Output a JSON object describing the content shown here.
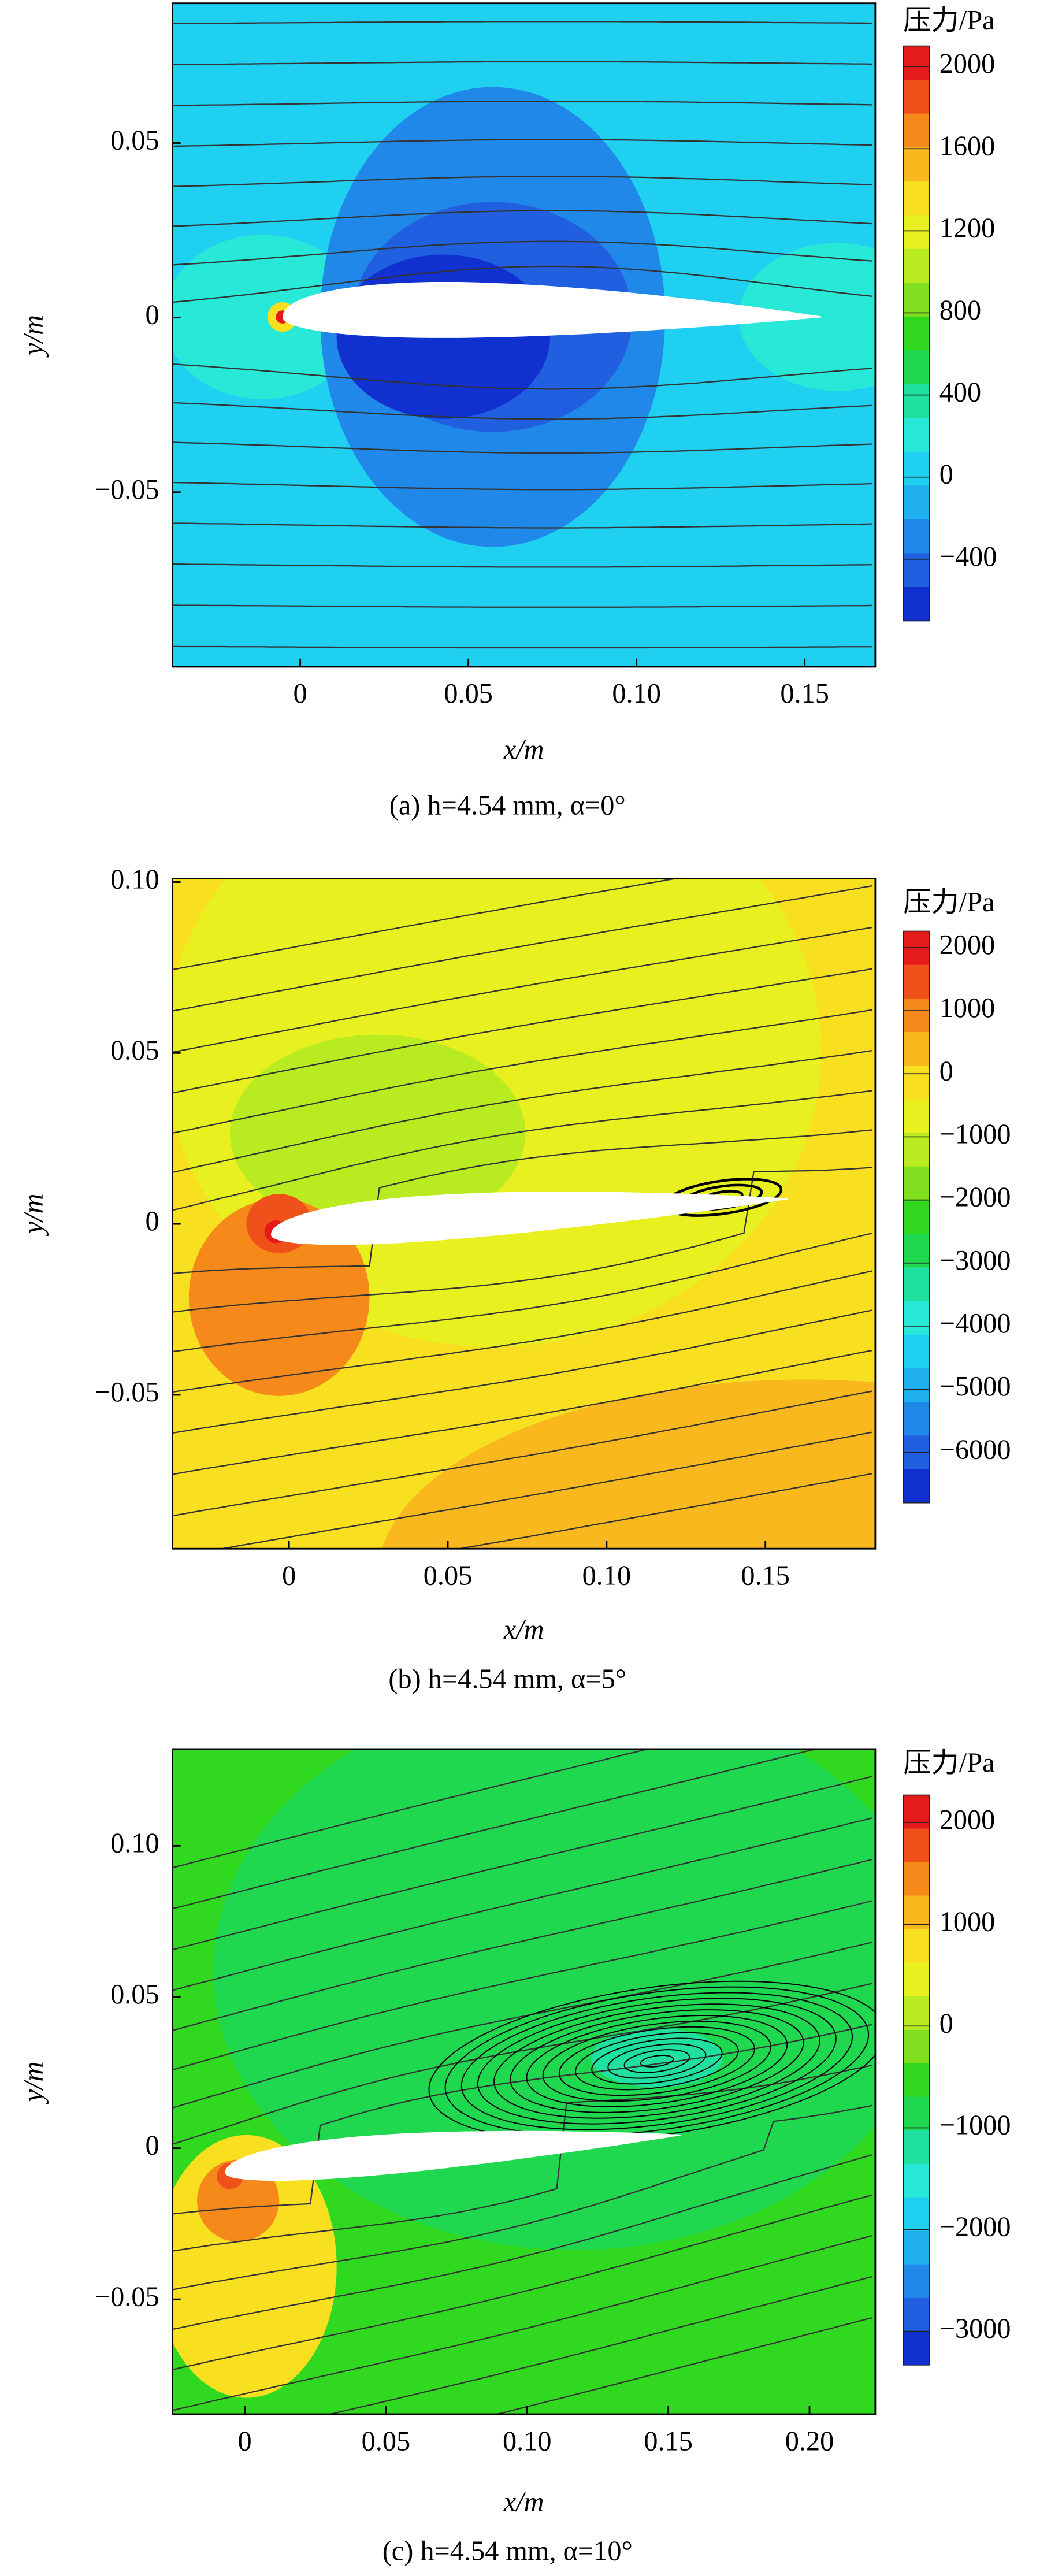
{
  "chart_data": [
    {
      "type": "contour",
      "caption": "(a) h=4.54 mm, α=0°",
      "x_label": "x/m",
      "y_label": "y/m",
      "colorbar_title": "压力/Pa",
      "xlim": [
        -0.038,
        0.171
      ],
      "ylim": [
        -0.1,
        0.09
      ],
      "xticks": [
        0,
        0.05,
        {
          "value": 0.1,
          "label": "0.10"
        },
        0.15
      ],
      "yticks": [
        {
          "value": -0.05,
          "label": "−0.05"
        },
        0,
        0.05
      ],
      "clim": [
        -700,
        2100
      ],
      "cticks": [
        {
          "value": -400,
          "label": "−400"
        },
        0,
        400,
        800,
        1200,
        1600,
        2000
      ],
      "colorscale": [
        "#e51a1a",
        "#f0501a",
        "#f58a1a",
        "#f8b81e",
        "#f8e020",
        "#e8f020",
        "#b8ec20",
        "#80e020",
        "#30d820",
        "#20d850",
        "#20e0a0",
        "#28e8d8",
        "#20d0f0",
        "#20b0f0",
        "#2088e8",
        "#2060e0",
        "#1030d0"
      ]
    },
    {
      "type": "contour",
      "caption": "(b) h=4.54 mm, α=5°",
      "x_label": "x/m",
      "y_label": "y/m",
      "colorbar_title": "压力/Pa",
      "xlim": [
        -0.0367,
        0.1846
      ],
      "ylim": [
        -0.095,
        0.101
      ],
      "xticks": [
        0,
        0.05,
        {
          "value": 0.1,
          "label": "0.10"
        },
        0.15
      ],
      "yticks": [
        {
          "value": -0.05,
          "label": "−0.05"
        },
        0,
        0.05,
        {
          "value": 0.1,
          "label": "0.10"
        }
      ],
      "clim": [
        -6800,
        2260
      ],
      "cticks": [
        {
          "value": -6000,
          "label": "−6000"
        },
        {
          "value": -5000,
          "label": "−5000"
        },
        {
          "value": -4000,
          "label": "−4000"
        },
        {
          "value": -3000,
          "label": "−3000"
        },
        {
          "value": -2000,
          "label": "−2000"
        },
        {
          "value": -1000,
          "label": "−1000"
        },
        0,
        1000,
        2000
      ],
      "colorscale": [
        "#e51a1a",
        "#f0501a",
        "#f58a1a",
        "#f8b81e",
        "#f8e020",
        "#e8f020",
        "#b8ec20",
        "#80e020",
        "#30d820",
        "#20d850",
        "#20e0a0",
        "#28e8d8",
        "#20d0f0",
        "#20b0f0",
        "#2088e8",
        "#2060e0",
        "#1030d0"
      ]
    },
    {
      "type": "contour",
      "caption": "(c) h=4.54 mm, α=10°",
      "x_label": "x/m",
      "y_label": "y/m",
      "colorbar_title": "压力/Pa",
      "xlim": [
        -0.0256,
        0.2233
      ],
      "ylim": [
        -0.088,
        0.132
      ],
      "xticks": [
        0,
        0.05,
        {
          "value": 0.1,
          "label": "0.10"
        },
        0.15,
        {
          "value": 0.2,
          "label": "0.20"
        }
      ],
      "yticks": [
        {
          "value": -0.05,
          "label": "−0.05"
        },
        0,
        0.05,
        {
          "value": 0.1,
          "label": "0.10"
        }
      ],
      "clim": [
        -3330,
        2270
      ],
      "cticks": [
        {
          "value": -3000,
          "label": "−3000"
        },
        {
          "value": -2000,
          "label": "−2000"
        },
        {
          "value": -1000,
          "label": "−1000"
        },
        0,
        1000,
        2000
      ],
      "colorscale": [
        "#e51a1a",
        "#f0501a",
        "#f58a1a",
        "#f8b81e",
        "#f8e020",
        "#e8f020",
        "#b8ec20",
        "#80e020",
        "#30d820",
        "#20d850",
        "#20e0a0",
        "#28e8d8",
        "#20d0f0",
        "#20b0f0",
        "#2088e8",
        "#2060e0",
        "#1030d0"
      ]
    }
  ]
}
